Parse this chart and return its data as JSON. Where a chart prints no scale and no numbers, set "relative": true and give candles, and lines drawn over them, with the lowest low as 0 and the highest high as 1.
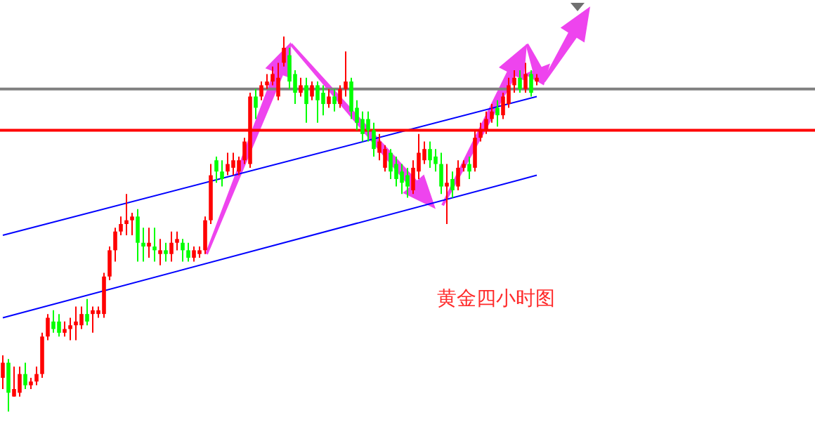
{
  "chart_data": {
    "type": "candlestick",
    "relative": true,
    "categories": [
      null,
      null,
      null,
      null,
      null,
      null,
      null,
      null,
      null,
      null,
      null,
      null,
      null,
      null,
      null,
      null,
      null,
      null,
      null,
      null,
      null,
      null,
      null,
      null,
      null,
      null,
      null,
      null,
      null,
      null,
      null,
      null,
      null,
      null,
      null,
      null,
      null,
      null,
      null,
      null,
      null,
      null,
      null,
      null,
      null,
      null,
      null,
      null,
      null,
      null,
      null,
      null,
      null,
      null,
      null,
      null,
      null,
      null,
      null,
      null,
      null,
      null,
      null,
      null,
      null,
      null,
      null,
      null,
      null,
      null,
      null,
      null,
      null,
      null,
      null,
      null,
      null,
      null,
      null,
      null,
      null,
      null,
      null,
      null,
      null,
      null,
      null,
      null,
      null,
      null,
      null,
      null,
      null,
      null,
      null,
      null
    ],
    "ohlc": [
      [
        0.09,
        0.15,
        0.06,
        0.13
      ],
      [
        0.13,
        0.14,
        0,
        0.05
      ],
      [
        0.04,
        0.12,
        0.04,
        0.06
      ],
      [
        0.05,
        0.12,
        0.04,
        0.1
      ],
      [
        0.1,
        0.13,
        0.06,
        0.07
      ],
      [
        0.07,
        0.09,
        0.06,
        0.08
      ],
      [
        0.08,
        0.12,
        0.07,
        0.1
      ],
      [
        0.1,
        0.21,
        0.09,
        0.2
      ],
      [
        0.2,
        0.26,
        0.19,
        0.25
      ],
      [
        0.24,
        0.27,
        0.21,
        0.22
      ],
      [
        0.24,
        0.26,
        0.2,
        0.21
      ],
      [
        0.21,
        0.24,
        0.2,
        0.22
      ],
      [
        0.22,
        0.25,
        0.19,
        0.23
      ],
      [
        0.23,
        0.28,
        0.19,
        0.24
      ],
      [
        0.23,
        0.28,
        0.22,
        0.26
      ],
      [
        0.26,
        0.3,
        0.23,
        0.24
      ],
      [
        0.26,
        0.28,
        0.21,
        0.27
      ],
      [
        0.26,
        0.28,
        0.25,
        0.27
      ],
      [
        0.26,
        0.37,
        0.25,
        0.36
      ],
      [
        0.36,
        0.44,
        0.35,
        0.43
      ],
      [
        0.43,
        0.49,
        0.4,
        0.48
      ],
      [
        0.48,
        0.52,
        0.47,
        0.5
      ],
      [
        0.5,
        0.58,
        0.47,
        0.51
      ],
      [
        0.51,
        0.53,
        0.47,
        0.52
      ],
      [
        0.52,
        0.54,
        0.4,
        0.45
      ],
      [
        0.45,
        0.49,
        0.4,
        0.44
      ],
      [
        0.44,
        0.49,
        0.41,
        0.45
      ],
      [
        0.44,
        0.49,
        0.4,
        0.43
      ],
      [
        0.42,
        0.46,
        0.39,
        0.43
      ],
      [
        0.43,
        0.45,
        0.4,
        0.42
      ],
      [
        0.42,
        0.48,
        0.4,
        0.45
      ],
      [
        0.45,
        0.48,
        0.43,
        0.46
      ],
      [
        0.45,
        0.46,
        0.4,
        0.43
      ],
      [
        0.43,
        0.45,
        0.4,
        0.41
      ],
      [
        0.41,
        0.44,
        0.4,
        0.43
      ],
      [
        0.42,
        0.44,
        0.41,
        0.43
      ],
      [
        0.43,
        0.52,
        0.42,
        0.51
      ],
      [
        0.51,
        0.66,
        0.5,
        0.63
      ],
      [
        0.67,
        0.68,
        0.61,
        0.64
      ],
      [
        0.64,
        0.67,
        0.6,
        0.62
      ],
      [
        0.64,
        0.69,
        0.63,
        0.66
      ],
      [
        0.65,
        0.69,
        0.63,
        0.67
      ],
      [
        0.64,
        0.68,
        0.63,
        0.67
      ],
      [
        0.67,
        0.73,
        0.66,
        0.72
      ],
      [
        0.66,
        0.85,
        0.65,
        0.84
      ],
      [
        0.84,
        0.86,
        0.78,
        0.81
      ],
      [
        0.84,
        0.88,
        0.83,
        0.87
      ],
      [
        0.87,
        0.9,
        0.86,
        0.88
      ],
      [
        0.88,
        0.92,
        0.87,
        0.9
      ],
      [
        0.84,
        0.93,
        0.83,
        0.89
      ],
      [
        0.93,
        1,
        0.92,
        0.97
      ],
      [
        0.95,
        0.97,
        0.86,
        0.88
      ],
      [
        0.9,
        0.91,
        0.82,
        0.85
      ],
      [
        0.85,
        0.89,
        0.84,
        0.87
      ],
      [
        0.87,
        0.89,
        0.77,
        0.82
      ],
      [
        0.84,
        0.88,
        0.83,
        0.87
      ],
      [
        0.87,
        0.88,
        0.77,
        0.83
      ],
      [
        0.85,
        0.87,
        0.79,
        0.82
      ],
      [
        0.82,
        0.86,
        0.81,
        0.84
      ],
      [
        0.84,
        0.86,
        0.8,
        0.82
      ],
      [
        0.82,
        0.87,
        0.81,
        0.86
      ],
      [
        0.86,
        0.96,
        0.84,
        0.88
      ],
      [
        0.88,
        0.89,
        0.78,
        0.8
      ],
      [
        0.81,
        0.83,
        0.75,
        0.77
      ],
      [
        0.78,
        0.8,
        0.72,
        0.74
      ],
      [
        0.78,
        0.8,
        0.72,
        0.75
      ],
      [
        0.75,
        0.77,
        0.68,
        0.7
      ],
      [
        0.69,
        0.74,
        0.67,
        0.72
      ],
      [
        0.65,
        0.71,
        0.64,
        0.7
      ],
      [
        0.69,
        0.7,
        0.62,
        0.64
      ],
      [
        0.66,
        0.68,
        0.6,
        0.62
      ],
      [
        0.64,
        0.66,
        0.58,
        0.61
      ],
      [
        0.63,
        0.65,
        0.57,
        0.6
      ],
      [
        0.59,
        0.67,
        0.58,
        0.65
      ],
      [
        0.64,
        0.74,
        0.62,
        0.69
      ],
      [
        0.67,
        0.72,
        0.66,
        0.7
      ],
      [
        0.7,
        0.72,
        0.65,
        0.67
      ],
      [
        0.68,
        0.7,
        0.64,
        0.66
      ],
      [
        0.66,
        0.69,
        0.58,
        0.6
      ],
      [
        0.6,
        0.66,
        0.5,
        0.61
      ],
      [
        0.62,
        0.64,
        0.57,
        0.59
      ],
      [
        0.6,
        0.67,
        0.59,
        0.65
      ],
      [
        0.65,
        0.67,
        0.64,
        0.66
      ],
      [
        0.66,
        0.68,
        0.62,
        0.64
      ],
      [
        0.65,
        0.75,
        0.64,
        0.73
      ],
      [
        0.73,
        0.77,
        0.72,
        0.75
      ],
      [
        0.75,
        0.8,
        0.74,
        0.78
      ],
      [
        0.78,
        0.82,
        0.77,
        0.8
      ],
      [
        0.81,
        0.83,
        0.76,
        0.79
      ],
      [
        0.79,
        0.85,
        0.78,
        0.84
      ],
      [
        0.82,
        0.89,
        0.81,
        0.87
      ],
      [
        0.87,
        0.91,
        0.85,
        0.89
      ],
      [
        0.89,
        0.91,
        0.85,
        0.86
      ],
      [
        0.86,
        0.93,
        0.85,
        0.9
      ],
      [
        0.9,
        0.91,
        0.84,
        0.85
      ],
      [
        0.88,
        0.9,
        0.87,
        0.89
      ]
    ],
    "series": [
      {
        "type": "line",
        "color": "#0000ff",
        "values": [
          0.47,
          null,
          null,
          null,
          null,
          null,
          null,
          null,
          null,
          null,
          null,
          null,
          null,
          null,
          null,
          null,
          null,
          null,
          null,
          null,
          null,
          null,
          null,
          null,
          null,
          null,
          null,
          null,
          null,
          null,
          null,
          null,
          null,
          null,
          null,
          null,
          null,
          null,
          null,
          null,
          null,
          null,
          null,
          null,
          null,
          null,
          null,
          null,
          null,
          null,
          null,
          null,
          null,
          null,
          null,
          null,
          null,
          null,
          null,
          null,
          null,
          null,
          null,
          null,
          null,
          null,
          null,
          null,
          null,
          null,
          null,
          null,
          null,
          null,
          null,
          null,
          null,
          null,
          null,
          null,
          null,
          null,
          null,
          null,
          null,
          null,
          null,
          null,
          null,
          null,
          null,
          null,
          null,
          null,
          null,
          0.84
        ]
      },
      {
        "type": "line",
        "color": "#0000ff",
        "values": [
          0.25,
          null,
          null,
          null,
          null,
          null,
          null,
          null,
          null,
          null,
          null,
          null,
          null,
          null,
          null,
          null,
          null,
          null,
          null,
          null,
          null,
          null,
          null,
          null,
          null,
          null,
          null,
          null,
          null,
          null,
          null,
          null,
          null,
          null,
          null,
          null,
          null,
          null,
          null,
          null,
          null,
          null,
          null,
          null,
          null,
          null,
          null,
          null,
          null,
          null,
          null,
          null,
          null,
          null,
          null,
          null,
          null,
          null,
          null,
          null,
          null,
          null,
          null,
          null,
          null,
          null,
          null,
          null,
          null,
          null,
          null,
          null,
          null,
          null,
          null,
          null,
          null,
          null,
          null,
          null,
          null,
          null,
          null,
          null,
          null,
          null,
          null,
          null,
          null,
          null,
          null,
          null,
          null,
          null,
          null,
          0.63
        ]
      }
    ],
    "ref_lines": [
      {
        "axis": "y",
        "value": 0.75,
        "color": "#ff0000"
      },
      {
        "axis": "y",
        "value": 0.86,
        "color": "#808080"
      }
    ],
    "annotations": [
      "黄金四小时图"
    ]
  }
}
